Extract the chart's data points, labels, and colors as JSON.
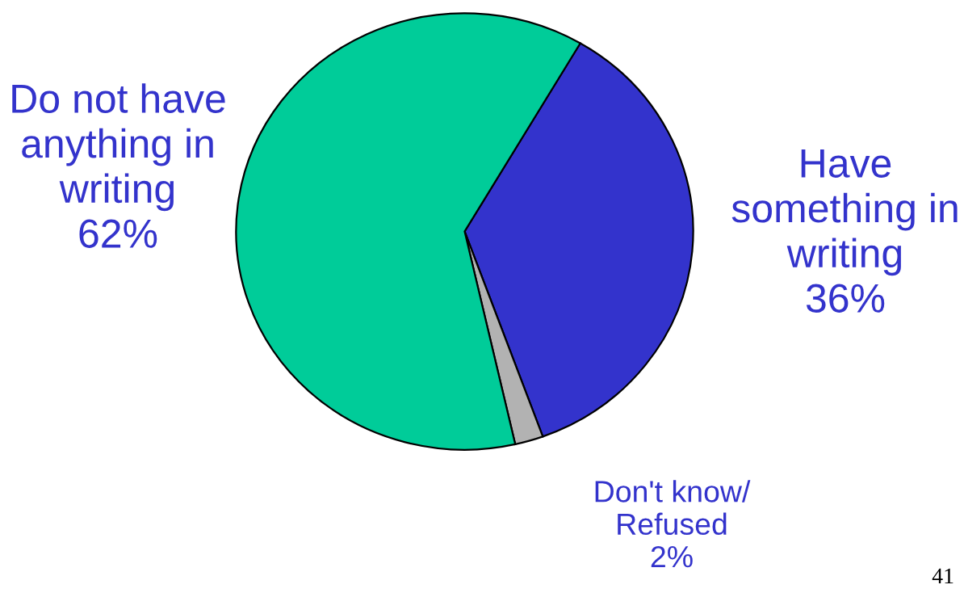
{
  "chart_data": {
    "type": "pie",
    "categories": [
      "Have\nsomething in\nwriting",
      "Don't know/\nRefused",
      "Do not have\nanything in\nwriting"
    ],
    "values": [
      36,
      2,
      62
    ],
    "colors": [
      "#3333cc",
      "#b2b2b2",
      "#00cc99"
    ],
    "value_labels": [
      "36%",
      "2%",
      "62%"
    ],
    "annotations": [
      "41"
    ]
  }
}
